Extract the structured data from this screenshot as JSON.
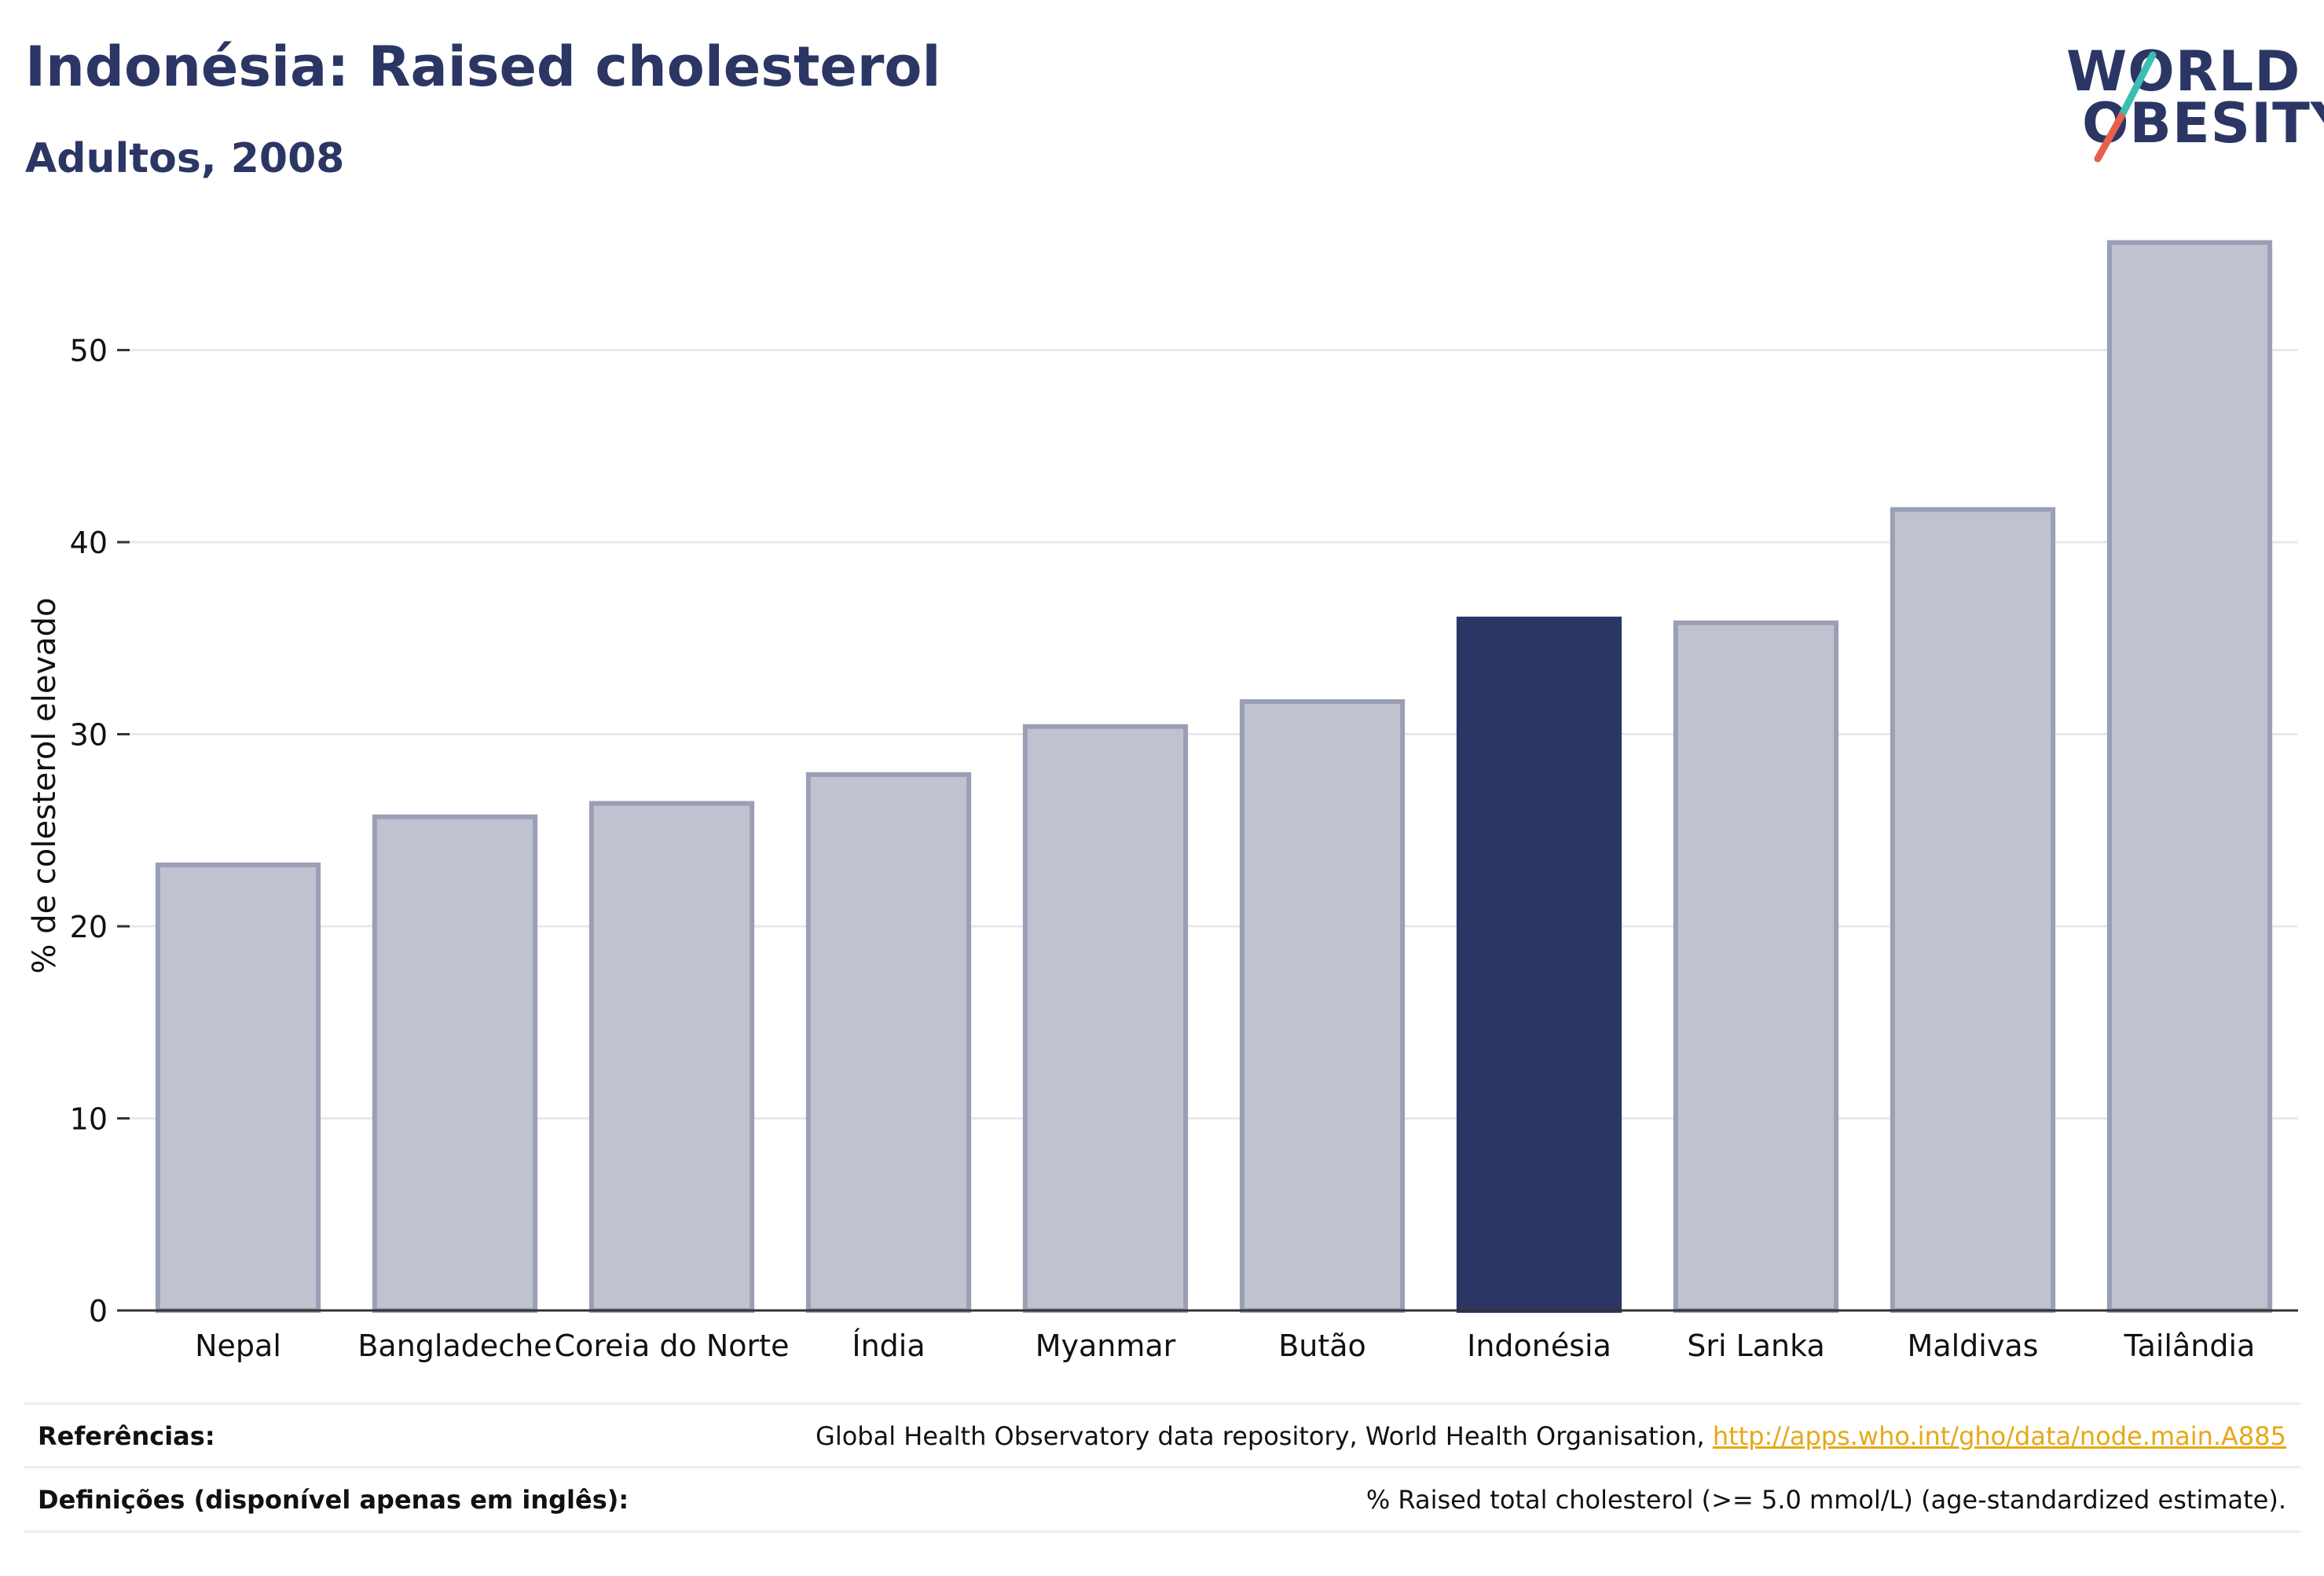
{
  "header": {
    "title": "Indonésia: Raised cholesterol",
    "subtitle": "Adultos, 2008"
  },
  "logo": {
    "line1": "WORLD",
    "line2": "OBESITY",
    "text_color": "#2b3664",
    "slash_colors": [
      "#3bbfb0",
      "#e8604c"
    ]
  },
  "chart_data": {
    "type": "bar",
    "categories": [
      "Nepal",
      "Bangladeche",
      "Coreia do Norte",
      "Índia",
      "Myanmar",
      "Butão",
      "Indonésia",
      "Sri Lanka",
      "Maldivas",
      "Tailândia"
    ],
    "values": [
      23.2,
      25.7,
      26.4,
      27.9,
      30.4,
      31.7,
      36.0,
      35.8,
      41.7,
      55.6
    ],
    "highlight": "Indonésia",
    "ylabel": "% de colesterol elevado",
    "xlabel": "",
    "ylim": [
      0,
      58
    ],
    "yticks": [
      0,
      10,
      20,
      30,
      40,
      50
    ],
    "grid": true,
    "colors": {
      "bar": "#bfc2cf",
      "bar_border": "#9a9fb5",
      "highlight": "#2b3664",
      "grid": "#e8e8ee",
      "axis": "#333333"
    }
  },
  "footer": {
    "references_label": "Referências:",
    "references_text": "Global Health Observatory data repository, World Health Organisation, ",
    "references_link": "http://apps.who.int/gho/data/node.main.A885",
    "definitions_label": "Definições (disponível apenas em inglês):",
    "definitions_text": "% Raised total cholesterol (>= 5.0 mmol/L) (age-standardized estimate)."
  }
}
